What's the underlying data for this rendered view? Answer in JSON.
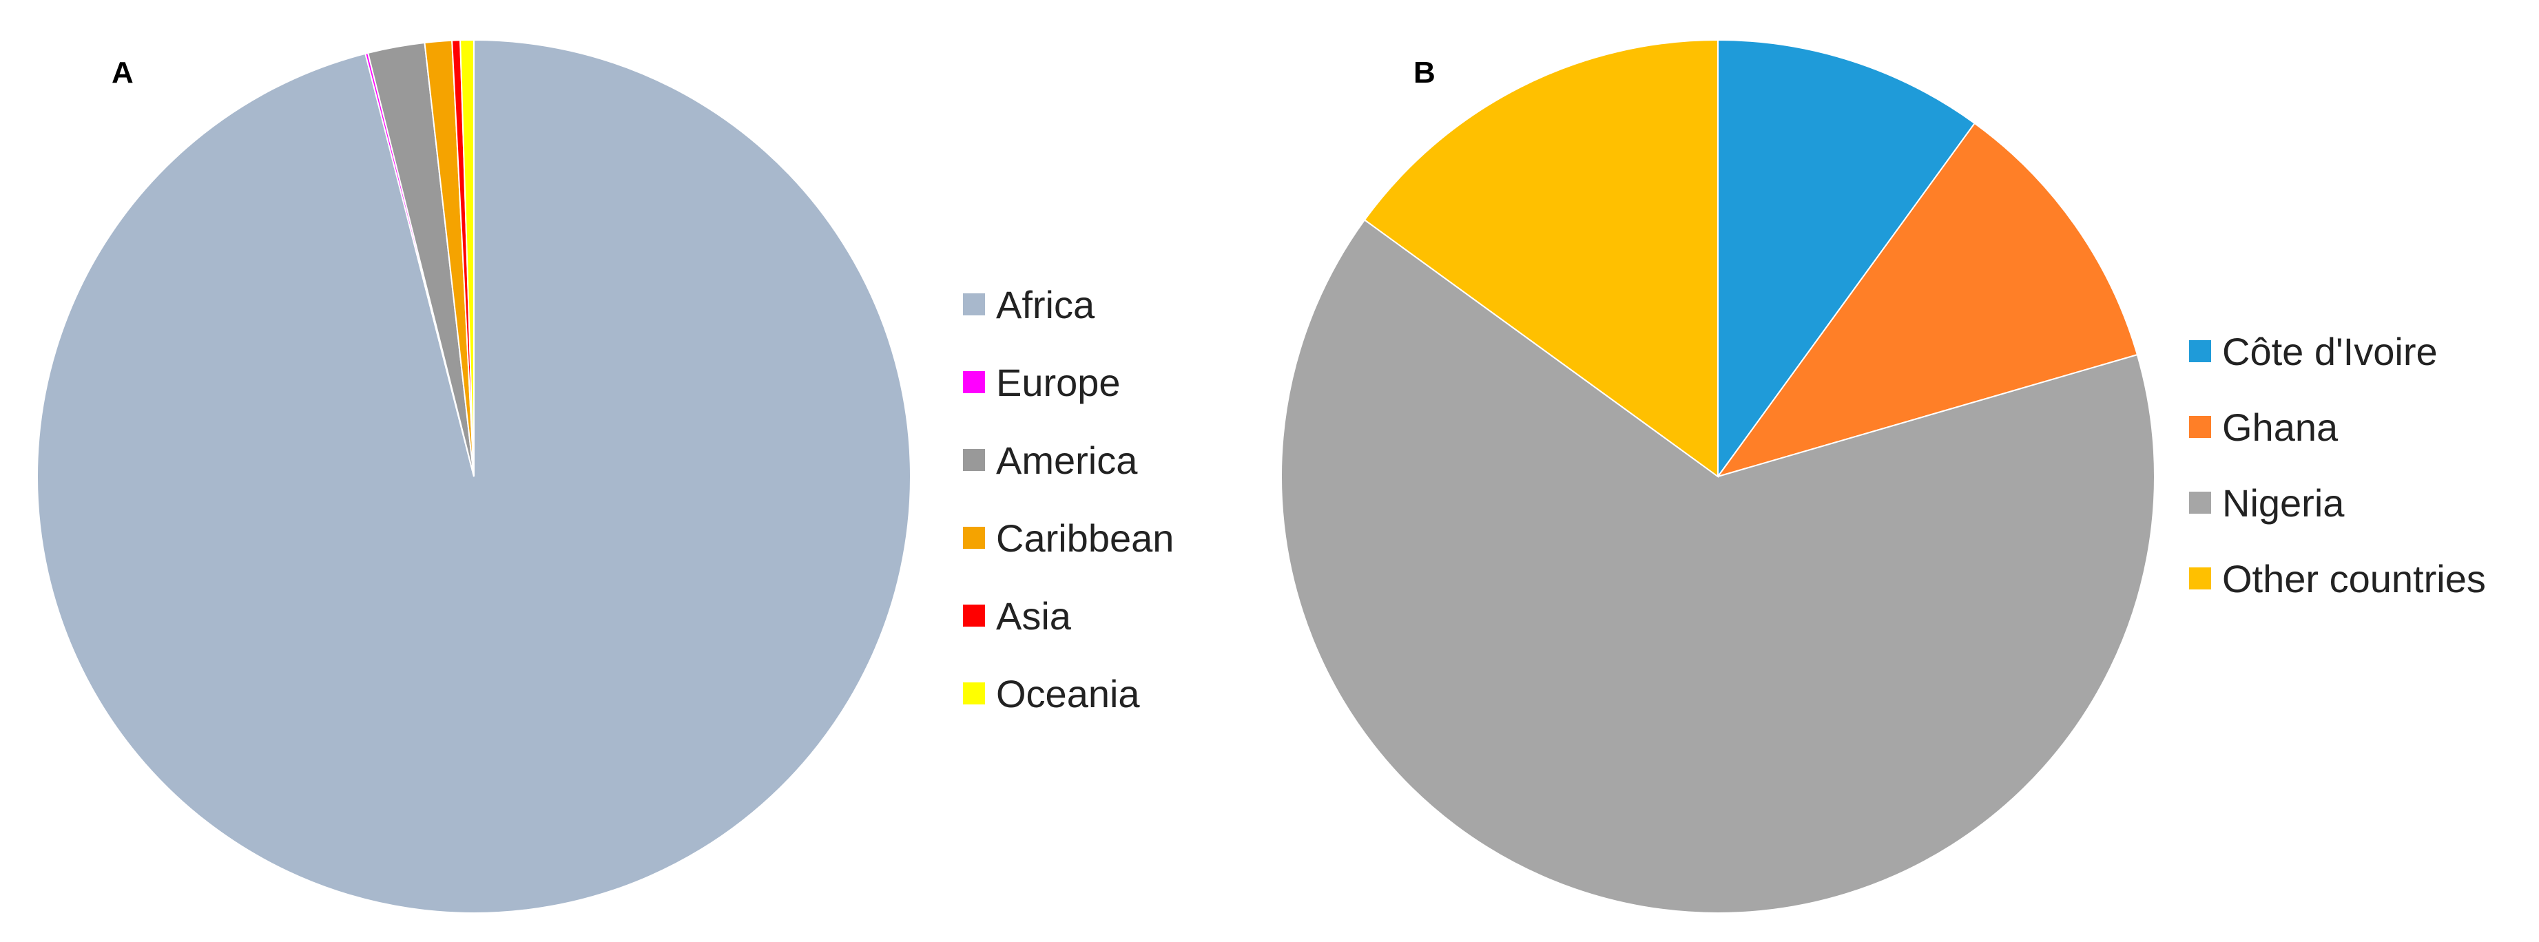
{
  "chart_data": [
    {
      "type": "pie",
      "panel_label": "A",
      "title": "",
      "legend_position": "right",
      "start_angle_deg": 0,
      "direction": "clockwise",
      "categories": [
        "Africa",
        "Europe",
        "America",
        "Caribbean",
        "Asia",
        "Oceania"
      ],
      "values": [
        96.0,
        0.1,
        2.1,
        1.0,
        0.3,
        0.5
      ],
      "colors": [
        "#a8b8cc",
        "#ff00ff",
        "#999999",
        "#f5a300",
        "#ff0000",
        "#ffff00"
      ]
    },
    {
      "type": "pie",
      "panel_label": "B",
      "title": "",
      "legend_position": "right",
      "start_angle_deg": 0,
      "direction": "clockwise",
      "categories": [
        "Côte d'Ivoire",
        "Ghana",
        "Nigeria",
        "Other countries"
      ],
      "values": [
        10.0,
        10.5,
        64.5,
        15.0
      ],
      "colors": [
        "#1f9bd9",
        "#ff7f27",
        "#a6a6a6",
        "#ffc000"
      ]
    }
  ]
}
